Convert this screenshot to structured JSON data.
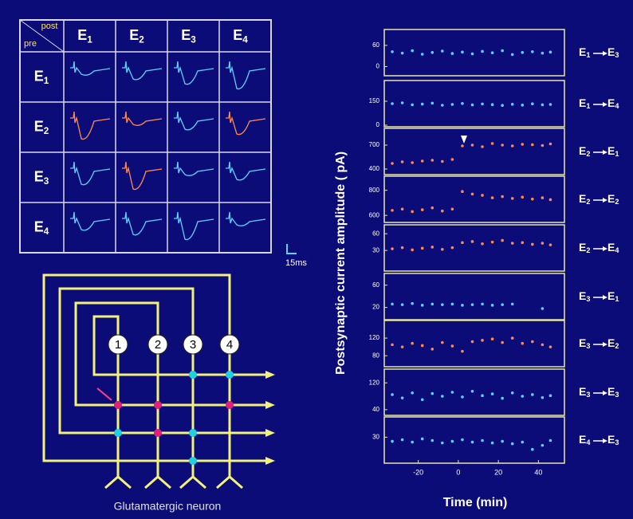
{
  "neuron_letter": "E",
  "matrix": {
    "post_label": "post",
    "pre_label": "pre",
    "indices": [
      "1",
      "2",
      "3",
      "4"
    ]
  },
  "scale_bar_label": "15ms",
  "diagram": {
    "neurons": [
      "1",
      "2",
      "3",
      "4"
    ],
    "caption": "Glutamatergic neuron"
  },
  "figure": {
    "ylabel": "Postsynaptic current amplitude ( pA)",
    "xlabel": "Time (min)"
  },
  "chart_data": [
    {
      "type": "scatter",
      "pre": "1",
      "post": "3",
      "color": "#5fd0ff",
      "xlim": [
        -37,
        53
      ],
      "ylim": [
        -26,
        105
      ],
      "yticks": [
        0,
        60
      ],
      "x": [
        -33,
        -28,
        -23,
        -18,
        -13,
        -8,
        -3,
        2,
        7,
        12,
        17,
        22,
        27,
        32,
        37,
        42,
        46
      ],
      "values": [
        42,
        38,
        45,
        35,
        40,
        44,
        37,
        41,
        36,
        43,
        39,
        45,
        34,
        40,
        42,
        38,
        41
      ]
    },
    {
      "type": "scatter",
      "pre": "1",
      "post": "4",
      "color": "#5fd0ff",
      "xlim": [
        -37,
        53
      ],
      "ylim": [
        -10,
        280
      ],
      "yticks": [
        0,
        150
      ],
      "x": [
        -33,
        -28,
        -23,
        -18,
        -13,
        -8,
        -3,
        2,
        7,
        12,
        17,
        22,
        27,
        32,
        37,
        42,
        46
      ],
      "values": [
        135,
        140,
        128,
        132,
        138,
        125,
        130,
        136,
        127,
        133,
        129,
        124,
        131,
        126,
        134,
        128,
        130
      ]
    },
    {
      "type": "scatter",
      "pre": "2",
      "post": "1",
      "color": "#ff8a50",
      "xlim": [
        -37,
        53
      ],
      "ylim": [
        330,
        910
      ],
      "yticks": [
        400,
        700
      ],
      "x": [
        -33,
        -28,
        -23,
        -18,
        -13,
        -8,
        -3,
        2,
        7,
        12,
        17,
        22,
        27,
        32,
        37,
        42,
        46
      ],
      "values": [
        470,
        490,
        480,
        500,
        510,
        495,
        520,
        690,
        700,
        680,
        720,
        700,
        690,
        710,
        705,
        695,
        715
      ]
    },
    {
      "type": "scatter",
      "pre": "2",
      "post": "2",
      "color": "#ff8a50",
      "xlim": [
        -37,
        53
      ],
      "ylim": [
        544,
        912
      ],
      "yticks": [
        600,
        800
      ],
      "x": [
        -33,
        -28,
        -23,
        -18,
        -13,
        -8,
        -3,
        2,
        7,
        12,
        17,
        22,
        27,
        32,
        37,
        42,
        46
      ],
      "values": [
        640,
        650,
        630,
        645,
        660,
        635,
        650,
        790,
        770,
        760,
        740,
        750,
        735,
        745,
        730,
        740,
        725
      ]
    },
    {
      "type": "scatter",
      "pre": "2",
      "post": "4",
      "color": "#ff8a50",
      "xlim": [
        -37,
        53
      ],
      "ylim": [
        -7,
        76
      ],
      "yticks": [
        30,
        60
      ],
      "x": [
        -33,
        -28,
        -23,
        -18,
        -13,
        -8,
        -3,
        2,
        7,
        12,
        17,
        22,
        27,
        32,
        37,
        42,
        46
      ],
      "values": [
        33,
        35,
        31,
        34,
        36,
        32,
        35,
        44,
        46,
        42,
        45,
        48,
        43,
        44,
        41,
        43,
        40
      ]
    },
    {
      "type": "scatter",
      "pre": "3",
      "post": "1",
      "color": "#5fd0ff",
      "xlim": [
        -37,
        53
      ],
      "ylim": [
        -2,
        81
      ],
      "yticks": [
        20,
        60
      ],
      "x": [
        -33,
        -28,
        -23,
        -18,
        -13,
        -8,
        -3,
        2,
        7,
        12,
        17,
        22,
        27,
        32,
        37,
        42,
        46
      ],
      "values": [
        26,
        25,
        27,
        24,
        26,
        25,
        26,
        24,
        25,
        26,
        24,
        25,
        26,
        null,
        null,
        18,
        null
      ]
    },
    {
      "type": "scatter",
      "pre": "3",
      "post": "2",
      "color": "#ff8a50",
      "xlim": [
        -37,
        53
      ],
      "ylim": [
        55,
        160
      ],
      "yticks": [
        80,
        120
      ],
      "x": [
        -33,
        -28,
        -23,
        -18,
        -13,
        -8,
        -3,
        2,
        7,
        12,
        17,
        22,
        27,
        32,
        37,
        42,
        46
      ],
      "values": [
        105,
        100,
        108,
        103,
        95,
        110,
        102,
        90,
        112,
        115,
        118,
        110,
        120,
        108,
        112,
        105,
        100
      ]
    },
    {
      "type": "scatter",
      "pre": "3",
      "post": "3",
      "color": "#5fd0ff",
      "xlim": [
        -37,
        53
      ],
      "ylim": [
        23,
        161
      ],
      "yticks": [
        40,
        120
      ],
      "x": [
        -33,
        -28,
        -23,
        -18,
        -13,
        -8,
        -3,
        2,
        7,
        12,
        17,
        22,
        27,
        32,
        37,
        42,
        46
      ],
      "values": [
        85,
        75,
        90,
        70,
        88,
        80,
        92,
        78,
        95,
        82,
        87,
        74,
        90,
        80,
        85,
        76,
        82
      ]
    },
    {
      "type": "scatter",
      "pre": "4",
      "post": "3",
      "color": "#5fd0ff",
      "xlim": [
        -37,
        53
      ],
      "ylim": [
        -2,
        55
      ],
      "yticks": [
        30
      ],
      "xticks": [
        -20,
        0,
        20,
        40
      ],
      "x": [
        -33,
        -28,
        -23,
        -18,
        -13,
        -8,
        -3,
        2,
        7,
        12,
        17,
        22,
        27,
        32,
        37,
        42,
        46
      ],
      "values": [
        25,
        27,
        24,
        28,
        26,
        23,
        25,
        27,
        24,
        26,
        23,
        25,
        22,
        24,
        15,
        20,
        26
      ]
    }
  ]
}
